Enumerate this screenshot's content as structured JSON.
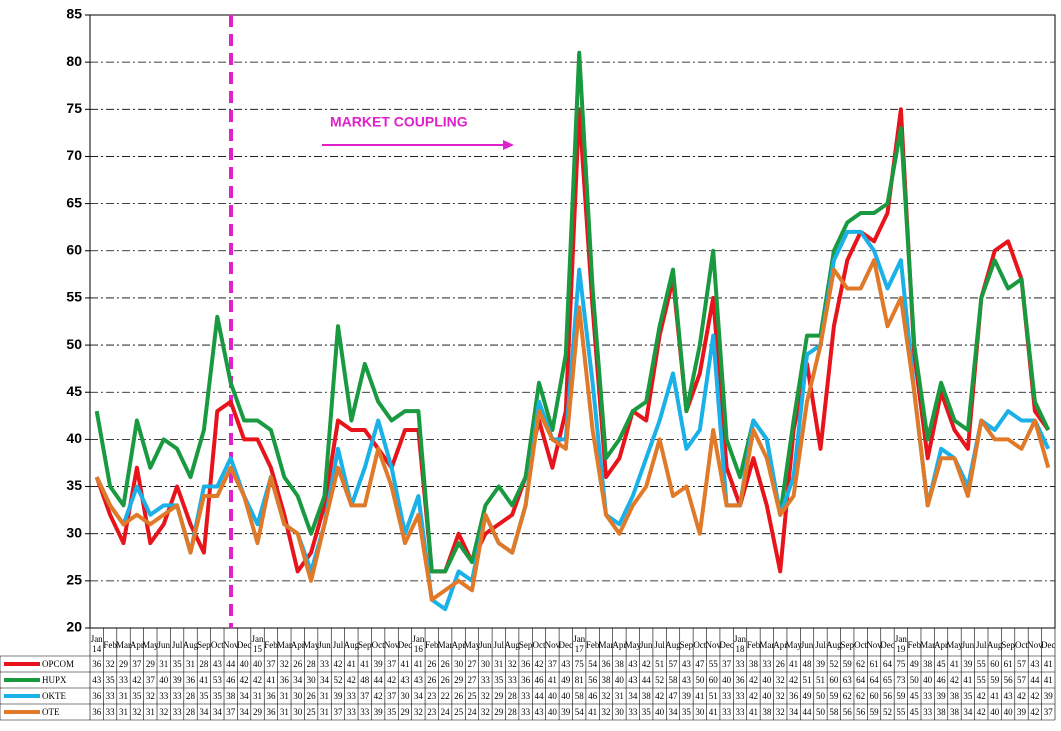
{
  "chart_data": {
    "type": "line",
    "annotation": "MARKET COUPLING",
    "categories": [
      "Jan 14",
      "Feb",
      "Mar",
      "Apr",
      "May",
      "Jun",
      "Jul",
      "Aug",
      "Sep",
      "Oct",
      "Nov",
      "Dec",
      "Jan 15",
      "Feb",
      "Mar",
      "Apr",
      "May",
      "Jun",
      "Jul",
      "Aug",
      "Sep",
      "Oct",
      "Nov",
      "Dec",
      "Jan 16",
      "Feb",
      "Mar",
      "Apr",
      "May",
      "Jun",
      "Jul",
      "Aug",
      "Sep",
      "Oct",
      "Nov",
      "Dec",
      "Jan 17",
      "Feb",
      "Mar",
      "Apr",
      "May",
      "Jun",
      "Jul",
      "Aug",
      "Sep",
      "Oct",
      "Nov",
      "Dec",
      "Jan 18",
      "Feb",
      "Mar",
      "Apr",
      "May",
      "Jun",
      "Jul",
      "Aug",
      "Sep",
      "Oct",
      "Nov",
      "Dec",
      "Jan 19",
      "Feb",
      "Mar",
      "Apr",
      "May",
      "Jun",
      "Jul",
      "Aug",
      "Sep",
      "Oct",
      "Nov",
      "Dec"
    ],
    "series": [
      {
        "name": "OPCOM",
        "color": "#e8141c",
        "values": [
          36,
          32,
          29,
          37,
          29,
          31,
          35,
          31,
          28,
          43,
          44,
          40,
          40,
          37,
          32,
          26,
          28,
          33,
          42,
          41,
          41,
          39,
          37,
          41,
          41,
          26,
          26,
          30,
          27,
          30,
          31,
          32,
          36,
          42,
          37,
          43,
          75,
          54,
          36,
          38,
          43,
          42,
          51,
          57,
          43,
          47,
          55,
          37,
          33,
          38,
          33,
          26,
          41,
          48,
          39,
          52,
          59,
          62,
          61,
          64,
          75,
          49,
          38,
          45,
          41,
          39,
          55,
          60,
          61,
          57,
          43,
          41
        ]
      },
      {
        "name": "HUPX",
        "color": "#1a9a40",
        "values": [
          43,
          35,
          33,
          42,
          37,
          40,
          39,
          36,
          41,
          53,
          46,
          42,
          42,
          41,
          36,
          34,
          30,
          34,
          52,
          42,
          48,
          44,
          42,
          43,
          43,
          26,
          26,
          29,
          27,
          33,
          35,
          33,
          36,
          46,
          41,
          49,
          81,
          56,
          38,
          40,
          43,
          44,
          52,
          58,
          43,
          50,
          60,
          40,
          36,
          42,
          40,
          32,
          42,
          51,
          51,
          60,
          63,
          64,
          64,
          65,
          73,
          50,
          40,
          46,
          42,
          41,
          55,
          59,
          56,
          57,
          44,
          41
        ]
      },
      {
        "name": "OKTE",
        "color": "#1ab0e8",
        "values": [
          36,
          33,
          31,
          35,
          32,
          33,
          33,
          28,
          35,
          35,
          38,
          34,
          31,
          36,
          31,
          30,
          26,
          31,
          39,
          33,
          37,
          42,
          37,
          30,
          34,
          23,
          22,
          26,
          25,
          32,
          29,
          28,
          33,
          44,
          40,
          40,
          58,
          46,
          32,
          31,
          34,
          38,
          42,
          47,
          39,
          41,
          51,
          33,
          33,
          42,
          40,
          32,
          36,
          49,
          50,
          59,
          62,
          62,
          60,
          56,
          59,
          45,
          33,
          39,
          38,
          35,
          42,
          41,
          43,
          42,
          42,
          39
        ]
      },
      {
        "name": "OTE",
        "color": "#e07a28",
        "values": [
          36,
          33,
          31,
          32,
          31,
          32,
          33,
          28,
          34,
          34,
          37,
          34,
          29,
          36,
          31,
          30,
          25,
          31,
          37,
          33,
          33,
          39,
          35,
          29,
          32,
          23,
          24,
          25,
          24,
          32,
          29,
          28,
          33,
          43,
          40,
          39,
          54,
          41,
          32,
          30,
          33,
          35,
          40,
          34,
          35,
          30,
          41,
          33,
          33,
          41,
          38,
          32,
          34,
          44,
          50,
          58,
          56,
          56,
          59,
          52,
          55,
          45,
          33,
          38,
          38,
          34,
          42,
          40,
          40,
          39,
          42,
          37
        ]
      }
    ],
    "ylim": [
      20,
      85
    ],
    "yticks": [
      20,
      25,
      30,
      35,
      40,
      45,
      50,
      55,
      60,
      65,
      70,
      75,
      80,
      85
    ],
    "grid": true
  }
}
